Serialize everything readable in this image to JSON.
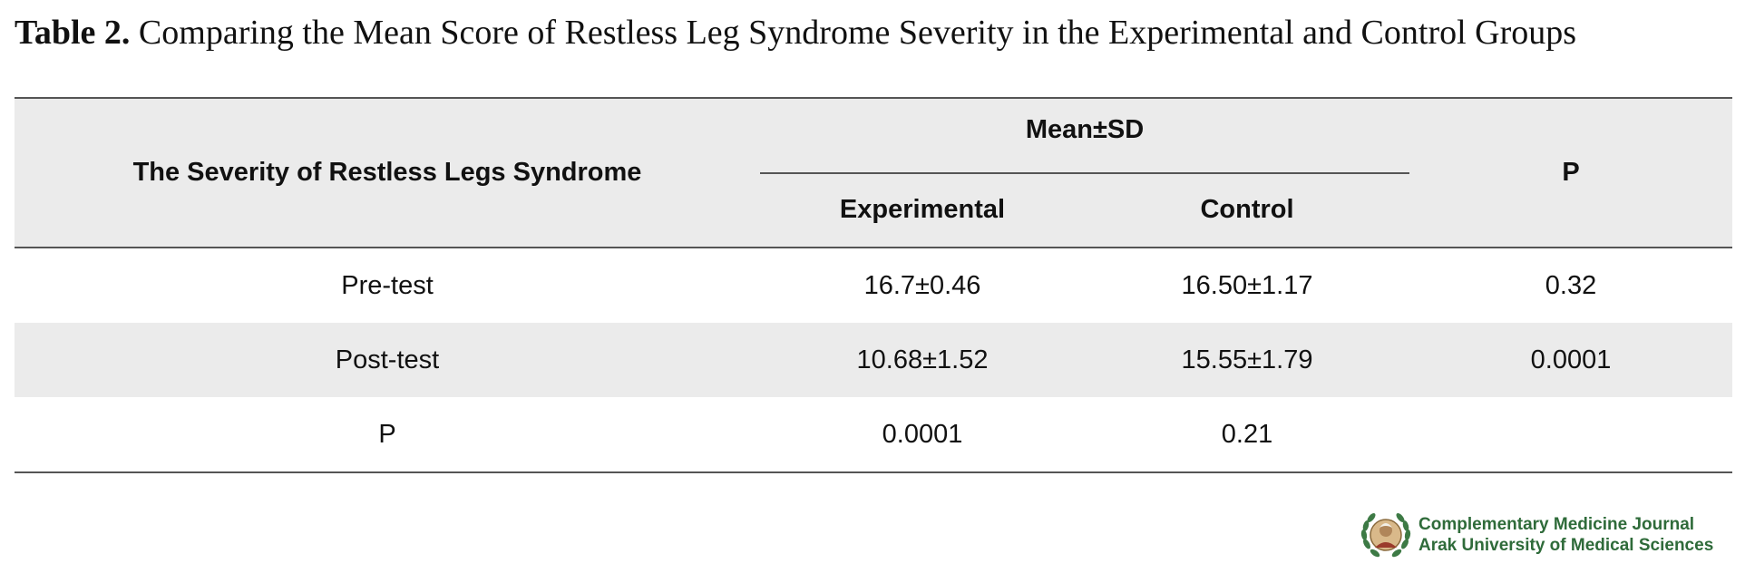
{
  "caption": {
    "label": "Table 2.",
    "text": " Comparing the Mean Score of Restless Leg Syndrome Severity in the Experimental and Control Groups"
  },
  "table": {
    "header": {
      "measure": "The Severity of Restless Legs Syndrome",
      "group_header": "Mean±SD",
      "experimental": "Experimental",
      "control": "Control",
      "p": "P"
    },
    "rows": [
      {
        "label": "Pre-test",
        "experimental": "16.7±0.46",
        "control": "16.50±1.17",
        "p": "0.32"
      },
      {
        "label": "Post-test",
        "experimental": "10.68±1.52",
        "control": "15.55±1.79",
        "p": "0.0001"
      },
      {
        "label": "P",
        "experimental": "0.0001",
        "control": "0.21",
        "p": ""
      }
    ]
  },
  "journal": {
    "line1": "Complementary Medicine Journal",
    "line2": "Arak University of Medical Sciences",
    "accent_color": "#2f6b3a"
  }
}
